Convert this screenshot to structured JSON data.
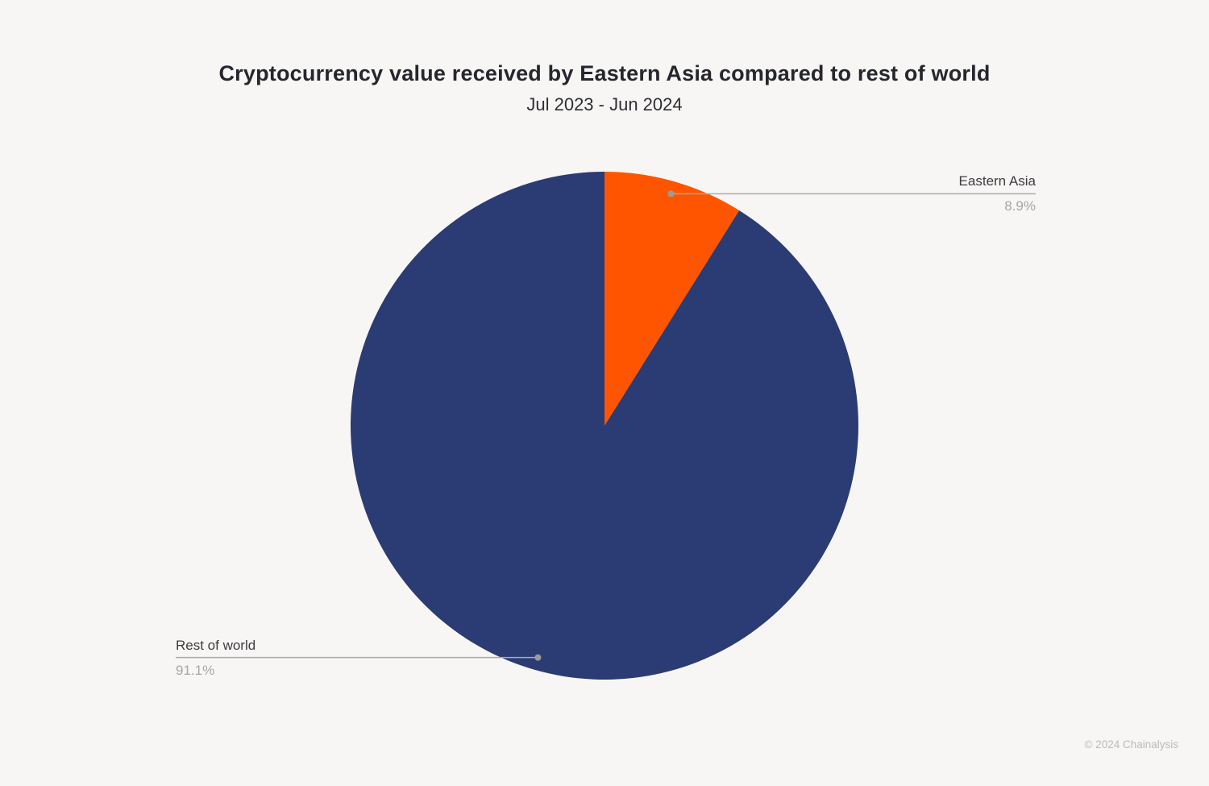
{
  "page": {
    "background_color": "#F7F6F4",
    "footer": "© 2024 Chainalysis"
  },
  "chart": {
    "title": "Cryptocurrency value received by Eastern Asia compared to rest of world",
    "subtitle": "Jul 2023 - Jun 2024"
  },
  "chart_data": {
    "type": "pie",
    "title": "Cryptocurrency value received by Eastern Asia compared to rest of world",
    "subtitle": "Jul 2023 - Jun 2024",
    "start_angle_deg": 0,
    "direction": "clockwise",
    "legend_position": "leader-line-labels",
    "slices": [
      {
        "label": "Eastern Asia",
        "value": 8.9,
        "display": "8.9%",
        "color": "#FF5500",
        "label_side": "right"
      },
      {
        "label": "Rest of world",
        "value": 91.1,
        "display": "91.1%",
        "color": "#2B3B73",
        "label_side": "left"
      }
    ],
    "leader_line_color": "#ABABAB",
    "leader_dot_color": "#9B9B9B"
  }
}
